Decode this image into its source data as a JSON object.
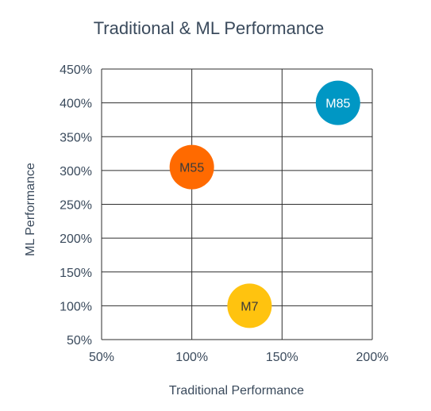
{
  "chart_data": {
    "type": "scatter",
    "title": "Traditional & ML Performance",
    "xlabel": "Traditional Performance",
    "ylabel": "ML Performance",
    "xlim": [
      50,
      200
    ],
    "ylim": [
      50,
      450
    ],
    "x_ticks": [
      "50%",
      "100%",
      "150%",
      "200%"
    ],
    "y_ticks": [
      "50%",
      "100%",
      "150%",
      "200%",
      "250%",
      "300%",
      "350%",
      "400%",
      "450%"
    ],
    "x_tick_values": [
      50,
      100,
      150,
      200
    ],
    "y_tick_values": [
      50,
      100,
      150,
      200,
      250,
      300,
      350,
      400,
      450
    ],
    "grid": true,
    "points": [
      {
        "label": "M55",
        "x": 100,
        "y": 305,
        "color": "#ff6a00",
        "text_color": "#3a3a3a"
      },
      {
        "label": "M7",
        "x": 132,
        "y": 100,
        "color": "#ffc30f",
        "text_color": "#3a3a3a"
      },
      {
        "label": "M85",
        "x": 181,
        "y": 400,
        "color": "#0097c4",
        "text_color": "#ffffff"
      }
    ]
  }
}
